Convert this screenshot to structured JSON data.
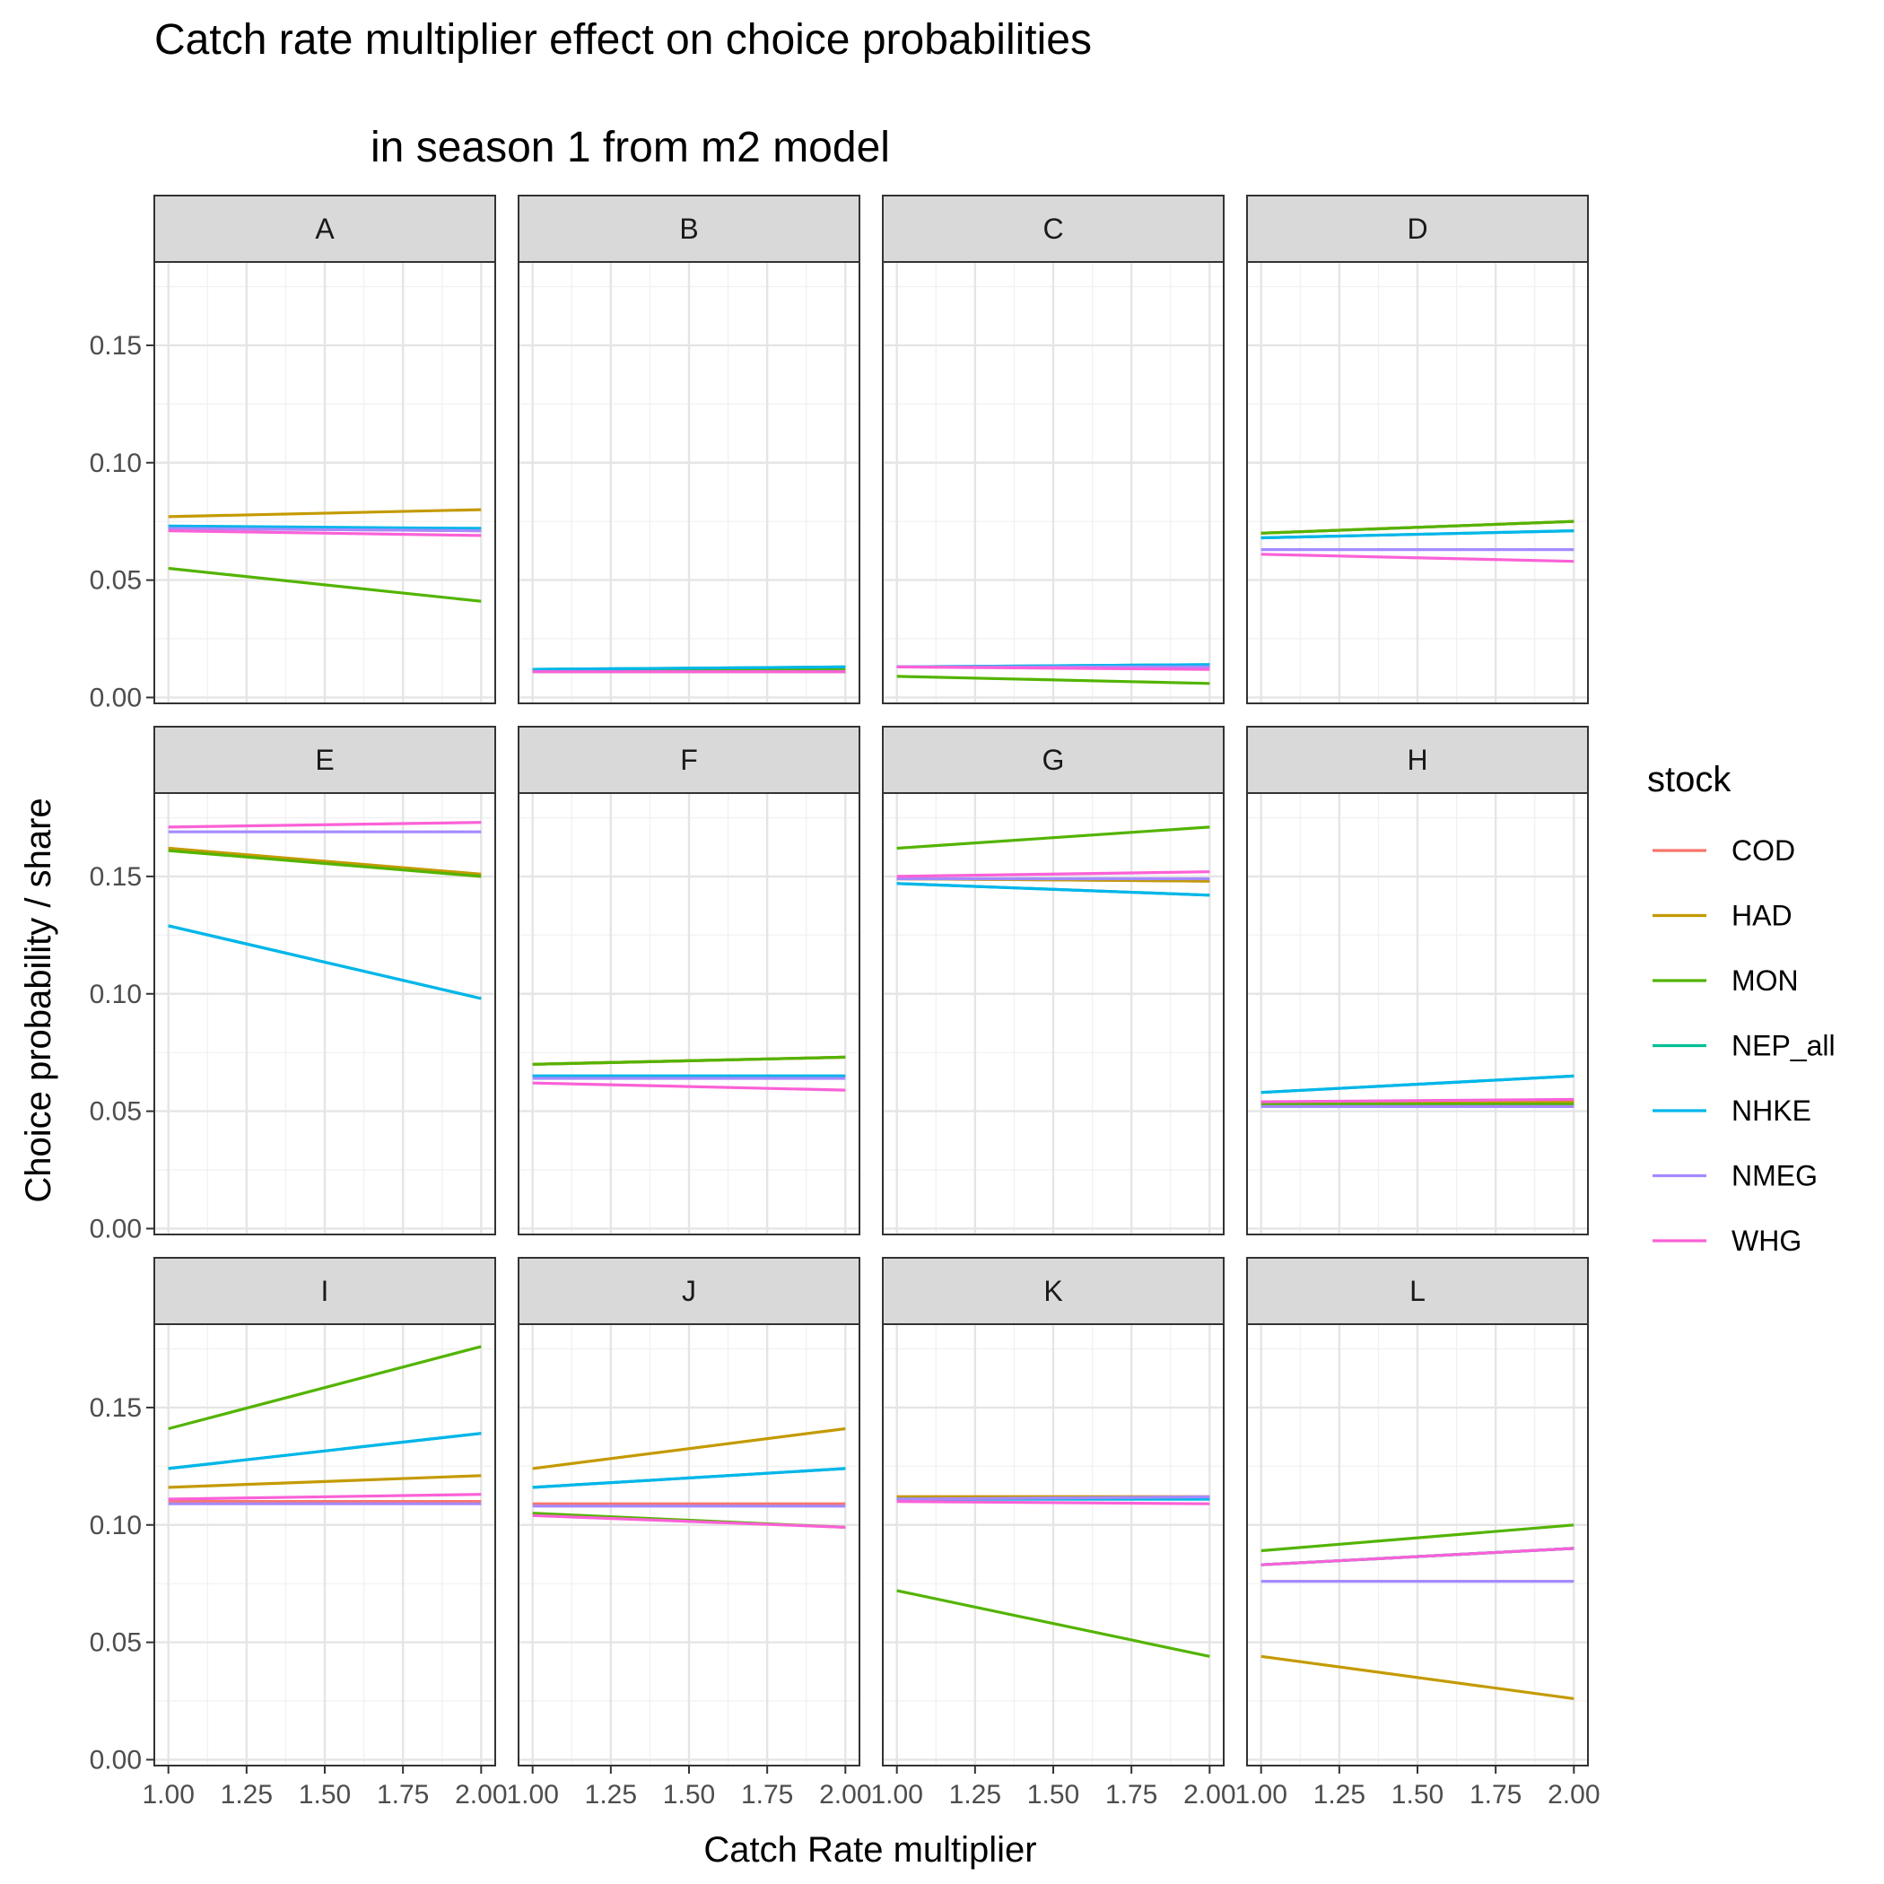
{
  "chart_data": {
    "type": "line",
    "title": "Catch rate multiplier effect on choice probabilities",
    "subtitle": "in season 1 from m2 model",
    "xlabel": "Catch Rate multiplier",
    "ylabel": "Choice probability / share",
    "xlim": [
      1.0,
      2.0
    ],
    "ylim": [
      0.0,
      0.18
    ],
    "x_ticks": [
      "1.00",
      "1.25",
      "1.50",
      "1.75",
      "2.00"
    ],
    "y_ticks": [
      "0.00",
      "0.05",
      "0.10",
      "0.15"
    ],
    "x_tick_values": [
      1.0,
      1.25,
      1.5,
      1.75,
      2.0
    ],
    "y_tick_values": [
      0.0,
      0.05,
      0.1,
      0.15
    ],
    "grid": true,
    "legend": {
      "title": "stock",
      "placement": "right",
      "entries": [
        {
          "name": "COD",
          "color": "#F8766D"
        },
        {
          "name": "HAD",
          "color": "#C49A00"
        },
        {
          "name": "MON",
          "color": "#53B400"
        },
        {
          "name": "NEP_all",
          "color": "#00C094"
        },
        {
          "name": "NHKE",
          "color": "#00B6EB"
        },
        {
          "name": "NMEG",
          "color": "#A58AFF"
        },
        {
          "name": "WHG",
          "color": "#FB61D7"
        }
      ]
    },
    "facet_order": [
      "A",
      "B",
      "C",
      "D",
      "E",
      "F",
      "G",
      "H",
      "I",
      "J",
      "K",
      "L"
    ],
    "x": [
      1.0,
      2.0
    ],
    "facets": [
      {
        "panel": "A",
        "series": [
          {
            "name": "COD",
            "values": [
              0.072,
              0.071
            ]
          },
          {
            "name": "HAD",
            "values": [
              0.077,
              0.08
            ]
          },
          {
            "name": "MON",
            "values": [
              0.055,
              0.041
            ]
          },
          {
            "name": "NEP_all",
            "values": [
              0.072,
              0.072
            ]
          },
          {
            "name": "NHKE",
            "values": [
              0.073,
              0.072
            ]
          },
          {
            "name": "NMEG",
            "values": [
              0.072,
              0.071
            ]
          },
          {
            "name": "WHG",
            "values": [
              0.071,
              0.069
            ]
          }
        ]
      },
      {
        "panel": "B",
        "series": [
          {
            "name": "COD",
            "values": [
              0.011,
              0.011
            ]
          },
          {
            "name": "HAD",
            "values": [
              0.011,
              0.011
            ]
          },
          {
            "name": "MON",
            "values": [
              0.012,
              0.012
            ]
          },
          {
            "name": "NEP_all",
            "values": [
              0.012,
              0.013
            ]
          },
          {
            "name": "NHKE",
            "values": [
              0.012,
              0.013
            ]
          },
          {
            "name": "NMEG",
            "values": [
              0.011,
              0.011
            ]
          },
          {
            "name": "WHG",
            "values": [
              0.011,
              0.011
            ]
          }
        ]
      },
      {
        "panel": "C",
        "series": [
          {
            "name": "COD",
            "values": [
              0.013,
              0.013
            ]
          },
          {
            "name": "HAD",
            "values": [
              0.013,
              0.013
            ]
          },
          {
            "name": "MON",
            "values": [
              0.009,
              0.006
            ]
          },
          {
            "name": "NEP_all",
            "values": [
              0.013,
              0.014
            ]
          },
          {
            "name": "NHKE",
            "values": [
              0.013,
              0.014
            ]
          },
          {
            "name": "NMEG",
            "values": [
              0.013,
              0.013
            ]
          },
          {
            "name": "WHG",
            "values": [
              0.013,
              0.012
            ]
          }
        ]
      },
      {
        "panel": "D",
        "series": [
          {
            "name": "COD",
            "values": [
              0.07,
              0.075
            ]
          },
          {
            "name": "HAD",
            "values": [
              0.07,
              0.075
            ]
          },
          {
            "name": "MON",
            "values": [
              0.07,
              0.075
            ]
          },
          {
            "name": "NEP_all",
            "values": [
              0.068,
              0.071
            ]
          },
          {
            "name": "NHKE",
            "values": [
              0.068,
              0.071
            ]
          },
          {
            "name": "NMEG",
            "values": [
              0.063,
              0.063
            ]
          },
          {
            "name": "WHG",
            "values": [
              0.061,
              0.058
            ]
          }
        ]
      },
      {
        "panel": "E",
        "series": [
          {
            "name": "COD",
            "values": [
              0.162,
              0.15
            ]
          },
          {
            "name": "HAD",
            "values": [
              0.162,
              0.151
            ]
          },
          {
            "name": "MON",
            "values": [
              0.161,
              0.15
            ]
          },
          {
            "name": "NEP_all",
            "values": [
              0.129,
              0.098
            ]
          },
          {
            "name": "NHKE",
            "values": [
              0.129,
              0.098
            ]
          },
          {
            "name": "NMEG",
            "values": [
              0.169,
              0.169
            ]
          },
          {
            "name": "WHG",
            "values": [
              0.171,
              0.173
            ]
          }
        ]
      },
      {
        "panel": "F",
        "series": [
          {
            "name": "COD",
            "values": [
              0.07,
              0.073
            ]
          },
          {
            "name": "HAD",
            "values": [
              0.07,
              0.073
            ]
          },
          {
            "name": "MON",
            "values": [
              0.07,
              0.073
            ]
          },
          {
            "name": "NEP_all",
            "values": [
              0.065,
              0.065
            ]
          },
          {
            "name": "NHKE",
            "values": [
              0.065,
              0.065
            ]
          },
          {
            "name": "NMEG",
            "values": [
              0.064,
              0.064
            ]
          },
          {
            "name": "WHG",
            "values": [
              0.062,
              0.059
            ]
          }
        ]
      },
      {
        "panel": "G",
        "series": [
          {
            "name": "COD",
            "values": [
              0.149,
              0.148
            ]
          },
          {
            "name": "HAD",
            "values": [
              0.149,
              0.148
            ]
          },
          {
            "name": "MON",
            "values": [
              0.162,
              0.171
            ]
          },
          {
            "name": "NEP_all",
            "values": [
              0.147,
              0.142
            ]
          },
          {
            "name": "NHKE",
            "values": [
              0.147,
              0.142
            ]
          },
          {
            "name": "NMEG",
            "values": [
              0.149,
              0.149
            ]
          },
          {
            "name": "WHG",
            "values": [
              0.15,
              0.152
            ]
          }
        ]
      },
      {
        "panel": "H",
        "series": [
          {
            "name": "COD",
            "values": [
              0.054,
              0.054
            ]
          },
          {
            "name": "HAD",
            "values": [
              0.054,
              0.054
            ]
          },
          {
            "name": "MON",
            "values": [
              0.053,
              0.053
            ]
          },
          {
            "name": "NEP_all",
            "values": [
              0.058,
              0.065
            ]
          },
          {
            "name": "NHKE",
            "values": [
              0.058,
              0.065
            ]
          },
          {
            "name": "NMEG",
            "values": [
              0.052,
              0.052
            ]
          },
          {
            "name": "WHG",
            "values": [
              0.054,
              0.055
            ]
          }
        ]
      },
      {
        "panel": "I",
        "series": [
          {
            "name": "COD",
            "values": [
              0.11,
              0.11
            ]
          },
          {
            "name": "HAD",
            "values": [
              0.116,
              0.121
            ]
          },
          {
            "name": "MON",
            "values": [
              0.141,
              0.176
            ]
          },
          {
            "name": "NEP_all",
            "values": [
              0.124,
              0.139
            ]
          },
          {
            "name": "NHKE",
            "values": [
              0.124,
              0.139
            ]
          },
          {
            "name": "NMEG",
            "values": [
              0.109,
              0.109
            ]
          },
          {
            "name": "WHG",
            "values": [
              0.111,
              0.113
            ]
          }
        ]
      },
      {
        "panel": "J",
        "series": [
          {
            "name": "COD",
            "values": [
              0.109,
              0.109
            ]
          },
          {
            "name": "HAD",
            "values": [
              0.124,
              0.141
            ]
          },
          {
            "name": "MON",
            "values": [
              0.105,
              0.099
            ]
          },
          {
            "name": "NEP_all",
            "values": [
              0.116,
              0.124
            ]
          },
          {
            "name": "NHKE",
            "values": [
              0.116,
              0.124
            ]
          },
          {
            "name": "NMEG",
            "values": [
              0.108,
              0.108
            ]
          },
          {
            "name": "WHG",
            "values": [
              0.104,
              0.099
            ]
          }
        ]
      },
      {
        "panel": "K",
        "series": [
          {
            "name": "COD",
            "values": [
              0.112,
              0.112
            ]
          },
          {
            "name": "HAD",
            "values": [
              0.112,
              0.112
            ]
          },
          {
            "name": "MON",
            "values": [
              0.072,
              0.044
            ]
          },
          {
            "name": "NEP_all",
            "values": [
              0.111,
              0.111
            ]
          },
          {
            "name": "NHKE",
            "values": [
              0.111,
              0.111
            ]
          },
          {
            "name": "NMEG",
            "values": [
              0.111,
              0.112
            ]
          },
          {
            "name": "WHG",
            "values": [
              0.11,
              0.109
            ]
          }
        ]
      },
      {
        "panel": "L",
        "series": [
          {
            "name": "COD",
            "values": [
              0.083,
              0.09
            ]
          },
          {
            "name": "HAD",
            "values": [
              0.044,
              0.026
            ]
          },
          {
            "name": "MON",
            "values": [
              0.089,
              0.1
            ]
          },
          {
            "name": "NEP_all",
            "values": [
              0.083,
              0.09
            ]
          },
          {
            "name": "NHKE",
            "values": [
              0.083,
              0.09
            ]
          },
          {
            "name": "NMEG",
            "values": [
              0.076,
              0.076
            ]
          },
          {
            "name": "WHG",
            "values": [
              0.083,
              0.09
            ]
          }
        ]
      }
    ]
  }
}
